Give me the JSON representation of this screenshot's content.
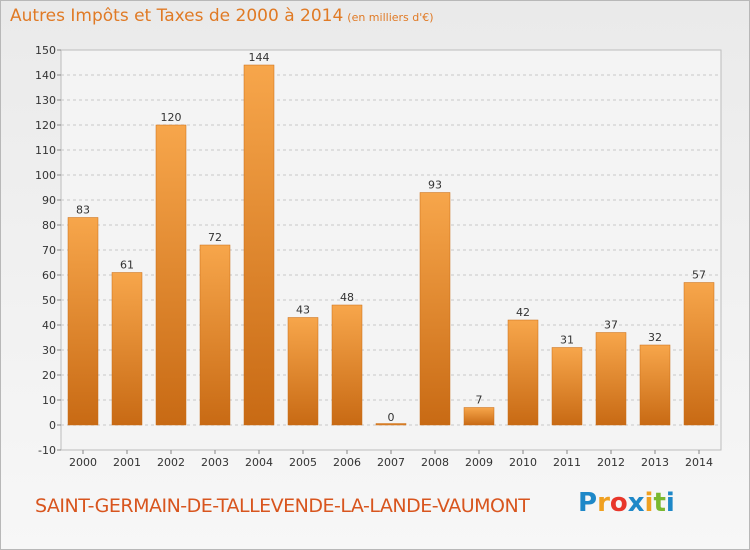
{
  "title": "Autres Impôts et Taxes de 2000 à 2014",
  "unit": "(en milliers d'€)",
  "commune": "SAINT-GERMAIN-DE-TALLEVENDE-LA-LANDE-VAUMONT",
  "brand": {
    "letters": [
      "P",
      "r",
      "o",
      "x",
      "i",
      "t",
      "i"
    ],
    "colors": [
      "#1e88c8",
      "#f0a020",
      "#e8362a",
      "#1e88c8",
      "#f0a020",
      "#7ab830",
      "#1e88c8"
    ]
  },
  "colors": {
    "bar_light": "#f7a64b",
    "bar_dark": "#c86a14",
    "grid": "#c8c8c8",
    "title": "#e07a25"
  },
  "chart_data": {
    "type": "bar",
    "categories": [
      "2000",
      "2001",
      "2002",
      "2003",
      "2004",
      "2005",
      "2006",
      "2007",
      "2008",
      "2009",
      "2010",
      "2011",
      "2012",
      "2013",
      "2014"
    ],
    "values": [
      83,
      61,
      120,
      72,
      144,
      43,
      48,
      0,
      93,
      7,
      42,
      31,
      37,
      32,
      57
    ],
    "ylim": [
      -10,
      150
    ],
    "yticks": [
      -10,
      0,
      10,
      20,
      30,
      40,
      50,
      60,
      70,
      80,
      90,
      100,
      110,
      120,
      130,
      140,
      150
    ],
    "grid": true,
    "xlabel": "",
    "ylabel": ""
  }
}
